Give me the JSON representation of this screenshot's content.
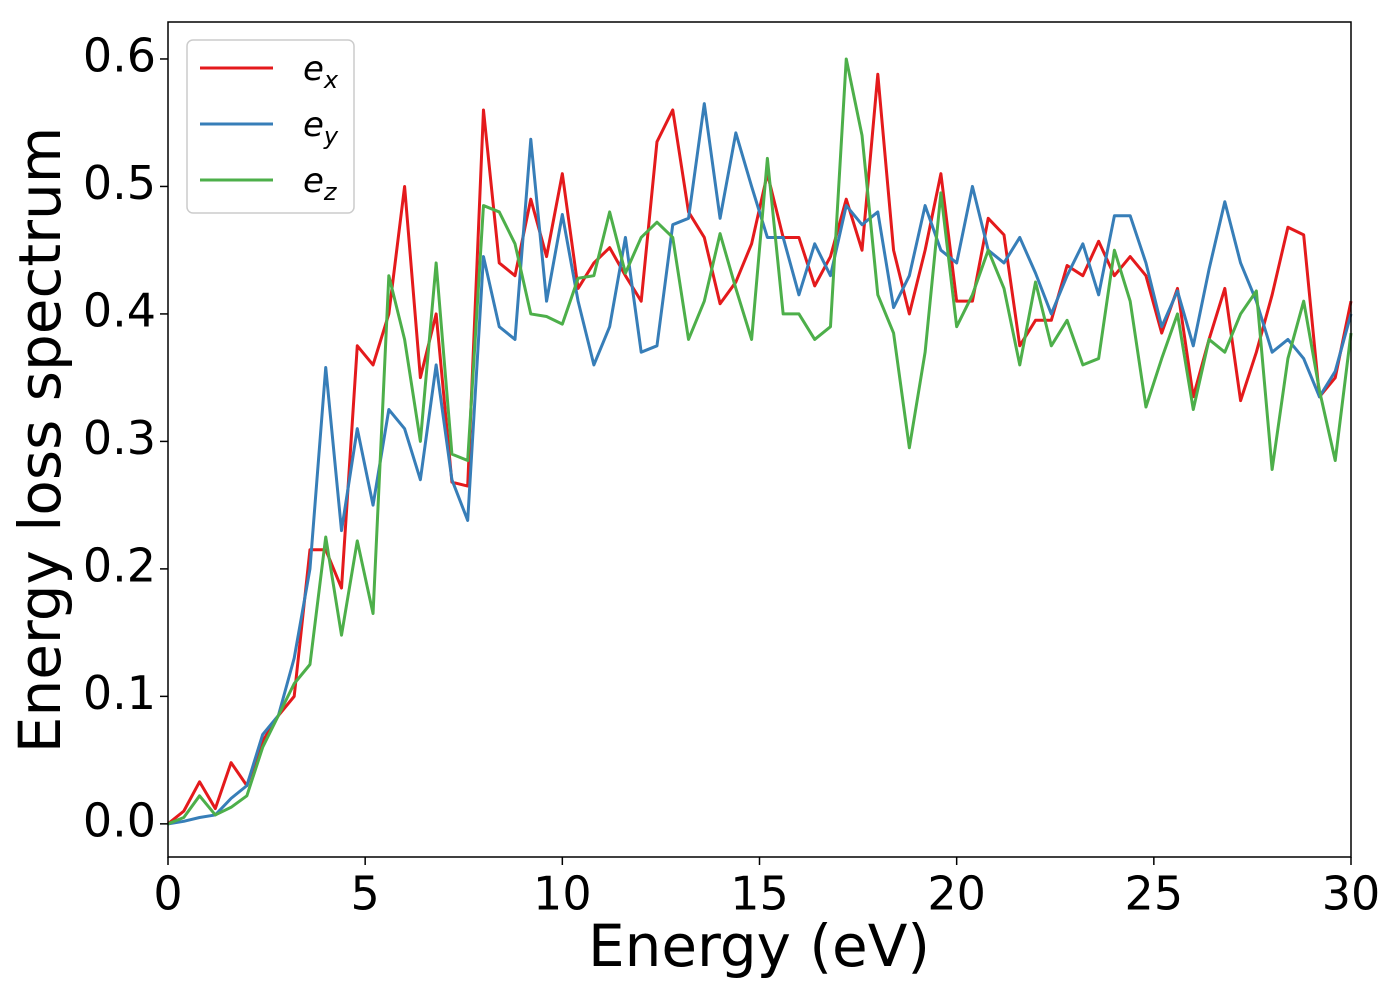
{
  "chart_data": {
    "type": "line",
    "xlabel": "Energy (eV)",
    "ylabel": "Energy loss spectrum",
    "xlim": [
      0,
      30
    ],
    "ylim": [
      -0.026,
      0.629
    ],
    "xticks": [
      0,
      5,
      10,
      15,
      20,
      25,
      30
    ],
    "yticks": [
      {
        "value": 0,
        "label": "0.0"
      },
      0.1,
      0.2,
      0.3,
      0.4,
      0.5,
      0.6
    ],
    "legend": "upper left",
    "grid": false,
    "x": [
      0,
      0.4,
      0.8,
      1.2,
      1.6,
      2.0,
      2.4,
      2.8,
      3.2,
      3.6,
      4.0,
      4.4,
      4.8,
      5.2,
      5.6,
      6.0,
      6.4,
      6.8,
      7.2,
      7.6,
      8.0,
      8.4,
      8.8,
      9.2,
      9.6,
      10.0,
      10.4,
      10.8,
      11.2,
      11.6,
      12.0,
      12.4,
      12.8,
      13.2,
      13.6,
      14.0,
      14.4,
      14.8,
      15.2,
      15.6,
      16.0,
      16.4,
      16.8,
      17.2,
      17.6,
      18.0,
      18.4,
      18.8,
      19.2,
      19.6,
      20.0,
      20.4,
      20.8,
      21.2,
      21.6,
      22.0,
      22.4,
      22.8,
      23.2,
      23.6,
      24.0,
      24.4,
      24.8,
      25.2,
      25.6,
      26.0,
      26.4,
      26.8,
      27.2,
      27.6,
      28.0,
      28.4,
      28.8,
      29.2,
      29.6,
      30.0
    ],
    "series": [
      {
        "name": "ex",
        "color": "#e41a1c",
        "values": [
          0,
          0.01,
          0.033,
          0.012,
          0.048,
          0.03,
          0.065,
          0.085,
          0.1,
          0.215,
          0.215,
          0.185,
          0.375,
          0.36,
          0.4,
          0.5,
          0.35,
          0.4,
          0.268,
          0.265,
          0.56,
          0.44,
          0.43,
          0.49,
          0.445,
          0.51,
          0.42,
          0.44,
          0.452,
          0.43,
          0.41,
          0.535,
          0.56,
          0.48,
          0.46,
          0.408,
          0.425,
          0.455,
          0.51,
          0.46,
          0.46,
          0.422,
          0.445,
          0.49,
          0.45,
          0.588,
          0.45,
          0.4,
          0.45,
          0.51,
          0.41,
          0.41,
          0.475,
          0.462,
          0.375,
          0.395,
          0.395,
          0.438,
          0.43,
          0.457,
          0.43,
          0.445,
          0.43,
          0.385,
          0.42,
          0.335,
          0.38,
          0.42,
          0.332,
          0.37,
          0.415,
          0.468,
          0.462,
          0.335,
          0.35,
          0.41
        ]
      },
      {
        "name": "ey",
        "color": "#377eb8",
        "values": [
          0,
          0.002,
          0.005,
          0.007,
          0.02,
          0.03,
          0.07,
          0.085,
          0.13,
          0.2,
          0.358,
          0.23,
          0.31,
          0.25,
          0.325,
          0.31,
          0.27,
          0.36,
          0.27,
          0.238,
          0.445,
          0.39,
          0.38,
          0.537,
          0.41,
          0.478,
          0.41,
          0.36,
          0.39,
          0.46,
          0.37,
          0.375,
          0.47,
          0.475,
          0.565,
          0.475,
          0.542,
          0.5,
          0.46,
          0.46,
          0.415,
          0.455,
          0.43,
          0.485,
          0.47,
          0.48,
          0.405,
          0.43,
          0.485,
          0.45,
          0.44,
          0.5,
          0.45,
          0.44,
          0.46,
          0.432,
          0.4,
          0.43,
          0.455,
          0.415,
          0.477,
          0.477,
          0.44,
          0.39,
          0.418,
          0.375,
          0.435,
          0.488,
          0.44,
          0.41,
          0.37,
          0.38,
          0.365,
          0.335,
          0.355,
          0.4
        ]
      },
      {
        "name": "ez",
        "color": "#4daf4a",
        "values": [
          0,
          0.005,
          0.022,
          0.007,
          0.013,
          0.022,
          0.06,
          0.085,
          0.11,
          0.125,
          0.225,
          0.148,
          0.222,
          0.165,
          0.43,
          0.38,
          0.3,
          0.44,
          0.29,
          0.285,
          0.485,
          0.48,
          0.455,
          0.4,
          0.398,
          0.392,
          0.428,
          0.43,
          0.48,
          0.432,
          0.46,
          0.472,
          0.46,
          0.38,
          0.41,
          0.463,
          0.42,
          0.38,
          0.522,
          0.4,
          0.4,
          0.38,
          0.39,
          0.6,
          0.54,
          0.415,
          0.385,
          0.295,
          0.37,
          0.495,
          0.39,
          0.415,
          0.45,
          0.42,
          0.36,
          0.425,
          0.375,
          0.395,
          0.36,
          0.365,
          0.45,
          0.41,
          0.327,
          0.365,
          0.4,
          0.325,
          0.38,
          0.37,
          0.4,
          0.418,
          0.278,
          0.365,
          0.41,
          0.34,
          0.285,
          0.385
        ]
      }
    ]
  }
}
